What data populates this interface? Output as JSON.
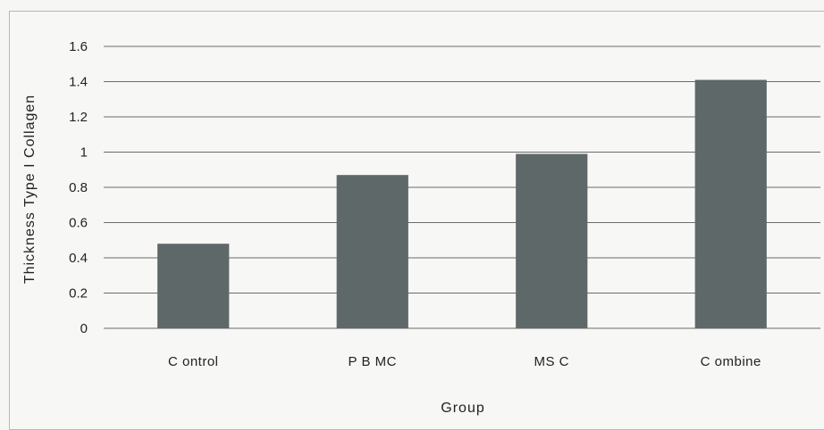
{
  "chart_data": {
    "type": "bar",
    "title": "",
    "xlabel": "Group",
    "ylabel": "Thickness Type I Collagen",
    "categories": [
      "Control",
      "PBMC",
      "MSC",
      "Combine"
    ],
    "category_labels": [
      "C ontrol",
      "P B MC",
      "MS C",
      "C ombine"
    ],
    "values": [
      0.48,
      0.87,
      0.99,
      1.41
    ],
    "ylim": [
      0,
      1.6
    ],
    "yticks": [
      "0",
      "0.2",
      "0.4",
      "0.6",
      "0.8",
      "1",
      "1.2",
      "1.4",
      "1.6"
    ],
    "grid": true,
    "legend": "none",
    "bar_color": "#5f6869",
    "grid_color": "#6b6b6b"
  }
}
